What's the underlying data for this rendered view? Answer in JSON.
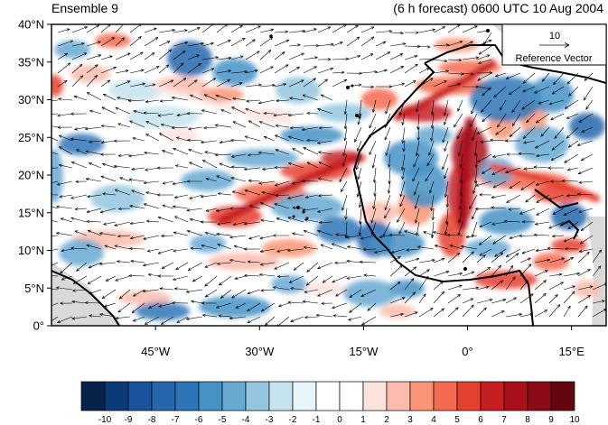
{
  "header": {
    "left_title": "Ensemble 9",
    "right_title": "(6 h forecast) 0600 UTC 10 Aug 2004"
  },
  "map": {
    "lon_range": [
      -60,
      20
    ],
    "lat_range": [
      0,
      40
    ],
    "lat_ticks": [
      {
        "value": 40,
        "label": "40°N"
      },
      {
        "value": 35,
        "label": "35°N"
      },
      {
        "value": 30,
        "label": "30°N"
      },
      {
        "value": 25,
        "label": "25°N"
      },
      {
        "value": 20,
        "label": "20°N"
      },
      {
        "value": 15,
        "label": "15°N"
      },
      {
        "value": 10,
        "label": "10°N"
      },
      {
        "value": 5,
        "label": "5°N"
      },
      {
        "value": 0,
        "label": "0°"
      }
    ],
    "lon_ticks": [
      {
        "value": -45,
        "label": "45°W"
      },
      {
        "value": -30,
        "label": "30°W"
      },
      {
        "value": -15,
        "label": "15°W"
      },
      {
        "value": 0,
        "label": "0°"
      },
      {
        "value": 15,
        "label": "15°E"
      }
    ],
    "reference_vector": {
      "magnitude": "10",
      "label": "Reference Vector"
    }
  },
  "colorbar": {
    "labels": [
      "-10",
      "-9",
      "-8",
      "-7",
      "-6",
      "-5",
      "-4",
      "-3",
      "-2",
      "-1",
      "0",
      "1",
      "2",
      "3",
      "4",
      "5",
      "6",
      "7",
      "8",
      "9",
      "10"
    ],
    "colors": [
      "#08234a",
      "#0b3a77",
      "#1a539c",
      "#2566ad",
      "#2d75b6",
      "#4592c6",
      "#68a9d2",
      "#93c6df",
      "#c4e3ef",
      "#e7f4fa",
      "#ffffff",
      "#ffffff",
      "#fde3e0",
      "#fbbcae",
      "#f99576",
      "#f46a4f",
      "#e5412f",
      "#c61e23",
      "#a9101b",
      "#8a0b16",
      "#650510"
    ]
  },
  "colors": {
    "land_gray": "#d9d9d9",
    "coast": "#000000",
    "vector": "#000000"
  }
}
